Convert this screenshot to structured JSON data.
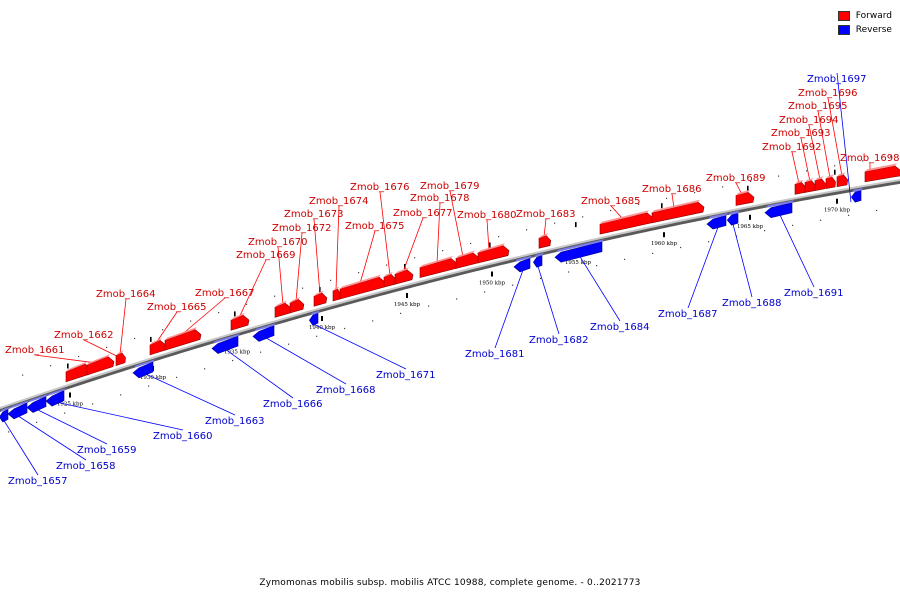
{
  "legend": {
    "forward_label": "Forward",
    "reverse_label": "Reverse",
    "forward_color": "#ff0000",
    "reverse_color": "#0000ff"
  },
  "caption": "Zymomonas mobilis subsp. mobilis ATCC 10988, complete genome. - 0..2021773",
  "axis": {
    "ticks": [
      {
        "kbp": 1925,
        "label": "1925 kbp"
      },
      {
        "kbp": 1930,
        "label": "1930 kbp"
      },
      {
        "kbp": 1935,
        "label": "1935 kbp"
      },
      {
        "kbp": 1940,
        "label": "1940 kbp"
      },
      {
        "kbp": 1945,
        "label": "1945 kbp"
      },
      {
        "kbp": 1950,
        "label": "1950 kbp"
      },
      {
        "kbp": 1955,
        "label": "1955 kbp"
      },
      {
        "kbp": 1960,
        "label": "1960 kbp"
      },
      {
        "kbp": 1965,
        "label": "1965 kbp"
      },
      {
        "kbp": 1970,
        "label": "1970 kbp"
      }
    ]
  },
  "genes": [
    {
      "name": "Zmob_1657",
      "strand": "reverse"
    },
    {
      "name": "Zmob_1658",
      "strand": "reverse"
    },
    {
      "name": "Zmob_1659",
      "strand": "reverse"
    },
    {
      "name": "Zmob_1660",
      "strand": "reverse"
    },
    {
      "name": "Zmob_1661",
      "strand": "forward"
    },
    {
      "name": "Zmob_1662",
      "strand": "forward"
    },
    {
      "name": "Zmob_1663",
      "strand": "reverse"
    },
    {
      "name": "Zmob_1664",
      "strand": "forward"
    },
    {
      "name": "Zmob_1665",
      "strand": "forward"
    },
    {
      "name": "Zmob_1666",
      "strand": "reverse"
    },
    {
      "name": "Zmob_1667",
      "strand": "forward"
    },
    {
      "name": "Zmob_1668",
      "strand": "reverse"
    },
    {
      "name": "Zmob_1669",
      "strand": "forward"
    },
    {
      "name": "Zmob_1670",
      "strand": "forward"
    },
    {
      "name": "Zmob_1671",
      "strand": "reverse"
    },
    {
      "name": "Zmob_1672",
      "strand": "forward"
    },
    {
      "name": "Zmob_1673",
      "strand": "forward"
    },
    {
      "name": "Zmob_1674",
      "strand": "forward"
    },
    {
      "name": "Zmob_1675",
      "strand": "forward"
    },
    {
      "name": "Zmob_1676",
      "strand": "forward"
    },
    {
      "name": "Zmob_1677",
      "strand": "forward"
    },
    {
      "name": "Zmob_1678",
      "strand": "forward"
    },
    {
      "name": "Zmob_1679",
      "strand": "forward"
    },
    {
      "name": "Zmob_1680",
      "strand": "forward"
    },
    {
      "name": "Zmob_1681",
      "strand": "reverse"
    },
    {
      "name": "Zmob_1682",
      "strand": "reverse"
    },
    {
      "name": "Zmob_1683",
      "strand": "forward"
    },
    {
      "name": "Zmob_1684",
      "strand": "reverse"
    },
    {
      "name": "Zmob_1685",
      "strand": "forward"
    },
    {
      "name": "Zmob_1686",
      "strand": "forward"
    },
    {
      "name": "Zmob_1687",
      "strand": "reverse"
    },
    {
      "name": "Zmob_1688",
      "strand": "reverse"
    },
    {
      "name": "Zmob_1689",
      "strand": "forward"
    },
    {
      "name": "Zmob_1691",
      "strand": "reverse"
    },
    {
      "name": "Zmob_1692",
      "strand": "forward"
    },
    {
      "name": "Zmob_1693",
      "strand": "forward"
    },
    {
      "name": "Zmob_1694",
      "strand": "forward"
    },
    {
      "name": "Zmob_1695",
      "strand": "forward"
    },
    {
      "name": "Zmob_1696",
      "strand": "forward"
    },
    {
      "name": "Zmob_1697",
      "strand": "reverse"
    },
    {
      "name": "Zmob_1698",
      "strand": "forward"
    }
  ]
}
